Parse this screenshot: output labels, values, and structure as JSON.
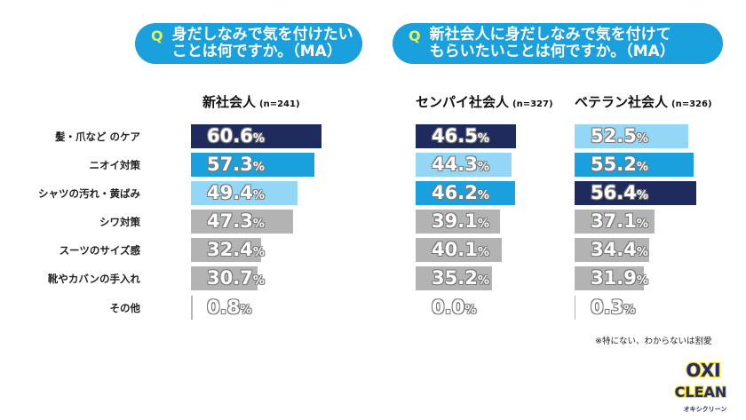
{
  "questions": [
    {
      "q": "Q",
      "text": "身だしなみで気を付けたい\nことは何ですか。（MA）"
    },
    {
      "q": "Q",
      "text": "新社会人に身だしなみで気を付けて\nもらいたいことは何ですか。（MA）"
    }
  ],
  "chart_data": {
    "type": "bar",
    "orientation": "horizontal",
    "categories": [
      "髪・爪など のケア",
      "ニオイ対策",
      "シャツの汚れ・黄ばみ",
      "シワ対策",
      "スーツのサイズ感",
      "靴やカバンの手入れ",
      "その他"
    ],
    "series": [
      {
        "name": "新社会人",
        "n": "(n=241)",
        "values": [
          60.6,
          57.3,
          49.4,
          47.3,
          32.4,
          30.7,
          0.8
        ]
      },
      {
        "name": "センパイ社会人",
        "n": "(n=327)",
        "values": [
          46.5,
          44.3,
          46.2,
          39.1,
          40.1,
          35.2,
          0.0
        ]
      },
      {
        "name": "ベテラン社会人",
        "n": "(n=326)",
        "values": [
          52.5,
          55.2,
          56.4,
          37.1,
          34.4,
          31.9,
          0.3
        ]
      }
    ],
    "unit": "%",
    "rank_colors": [
      "#1e2b5c",
      "#1aa0dc",
      "#93d6f6"
    ],
    "other_color": "#b3b3b3"
  },
  "note": "※特にない、わからないは割愛",
  "logo": {
    "line1": "OXI",
    "line2": "CLEAN",
    "sub": "オキシクリーン"
  }
}
